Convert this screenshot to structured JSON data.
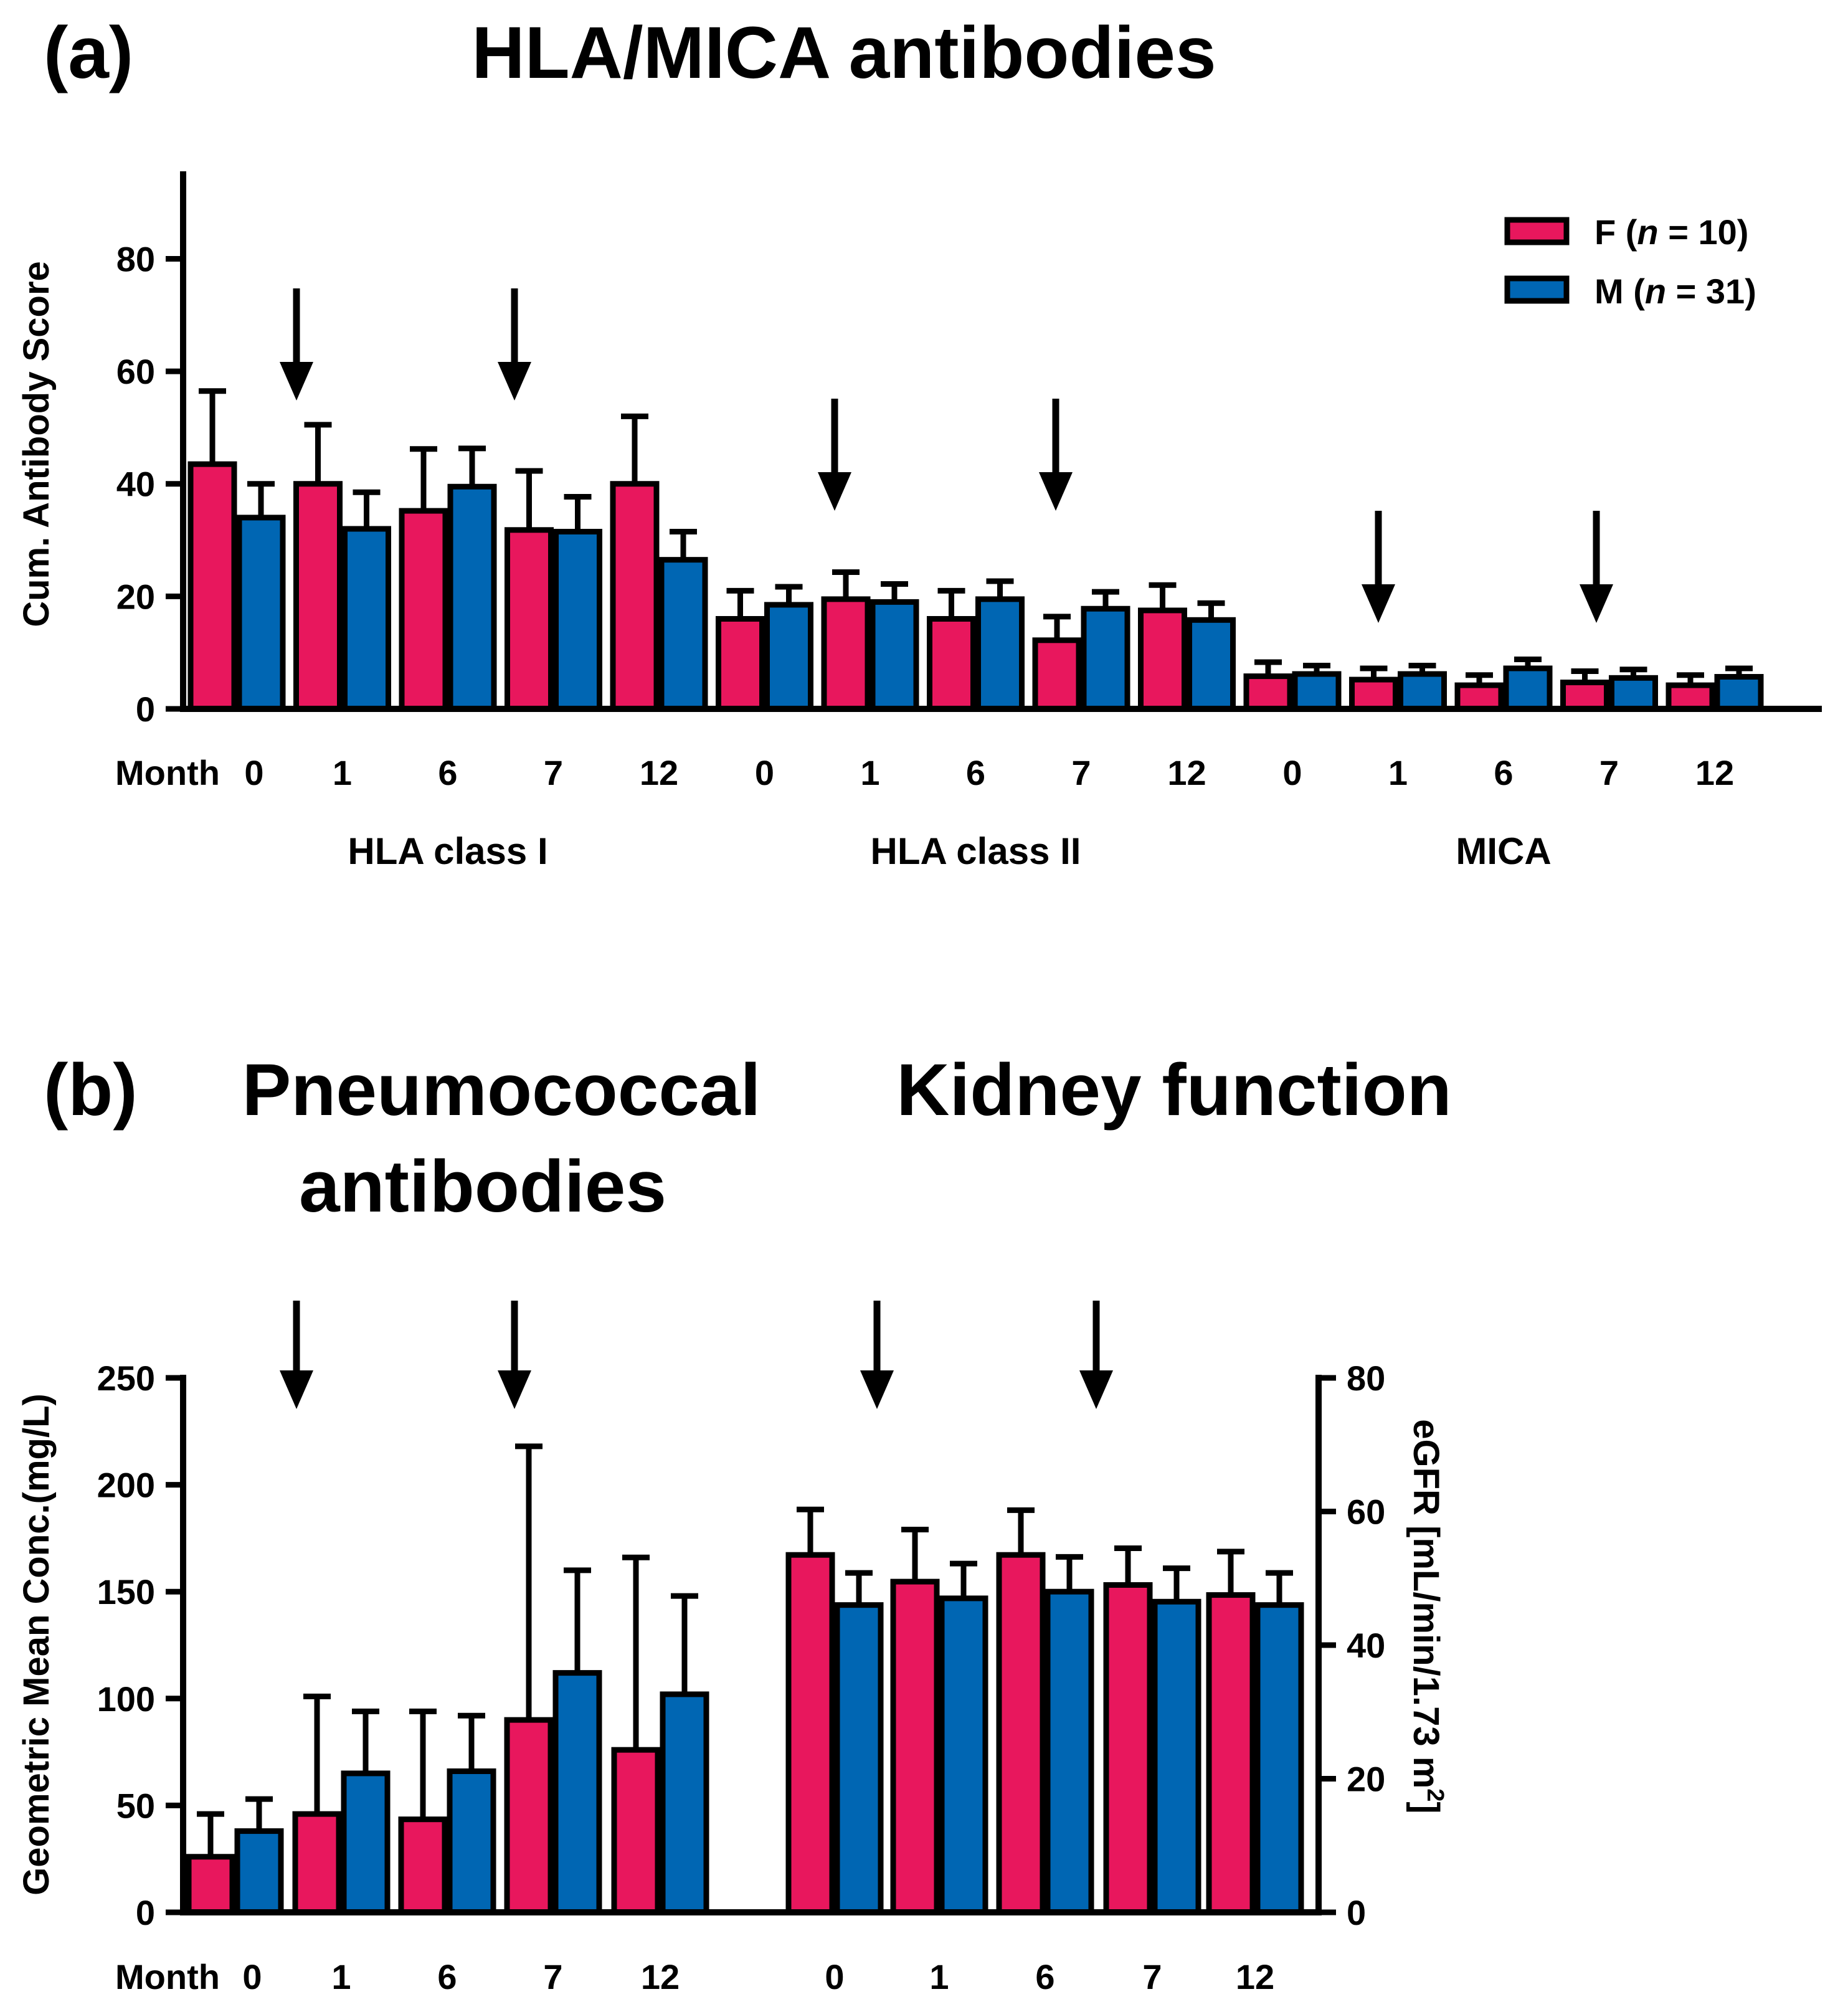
{
  "panel_a": {
    "letter": "(a)",
    "title": "HLA/MICA antibodies",
    "month_prefix": "Month",
    "legend": {
      "f_label": "F (",
      "f_n": "n",
      "f_count": " = 10)",
      "m_label": "M (",
      "m_n": "n",
      "m_count": " = 31)"
    }
  },
  "panel_b": {
    "letter": "(b)",
    "title_left_line1": "Pneumococcal",
    "title_left_line2": "antibodies",
    "title_right": "Kidney function",
    "month_prefix": "Month",
    "ylabel_right_main": "eGFR [mL/min/1.73 m",
    "ylabel_right_sup": "2",
    "ylabel_right_end": "]"
  },
  "colors": {
    "female": "#E8175D",
    "male": "#0066B3",
    "edge": "#000000"
  },
  "chart_data": [
    {
      "type": "bar",
      "title": "HLA/MICA antibodies",
      "ylabel": "Cum. Antibody Score",
      "ylim": [
        0,
        95
      ],
      "yticks": [
        0,
        20,
        40,
        60,
        80
      ],
      "legend_position": "top-right",
      "groups": [
        {
          "name": "HLA class I",
          "months": [
            "0",
            "1",
            "6",
            "7",
            "12"
          ],
          "series": [
            {
              "name": "F (n = 10)",
              "values": [
                43.5,
                40,
                35.2,
                31.8,
                40
              ],
              "errors": [
                13,
                10.5,
                11,
                10.5,
                12
              ]
            },
            {
              "name": "M (n = 31)",
              "values": [
                34,
                32,
                39.5,
                31.5,
                26.5
              ],
              "errors": [
                6,
                6.5,
                6.8,
                6.2,
                5
              ]
            }
          ]
        },
        {
          "name": "HLA class II",
          "months": [
            "0",
            "1",
            "6",
            "7",
            "12"
          ],
          "series": [
            {
              "name": "F (n = 10)",
              "values": [
                16,
                19.5,
                16,
                12.2,
                17.5
              ],
              "errors": [
                5,
                4.8,
                5,
                4.2,
                4.5
              ]
            },
            {
              "name": "M (n = 31)",
              "values": [
                18.5,
                19,
                19.5,
                17.8,
                15.8
              ],
              "errors": [
                3.2,
                3.2,
                3.2,
                3,
                3
              ]
            }
          ]
        },
        {
          "name": "MICA",
          "months": [
            "0",
            "1",
            "6",
            "7",
            "12"
          ],
          "series": [
            {
              "name": "F (n = 10)",
              "values": [
                5.8,
                5.2,
                4.2,
                4.7,
                4.2
              ],
              "errors": [
                2.5,
                2,
                1.8,
                2,
                1.8
              ]
            },
            {
              "name": "M (n = 31)",
              "values": [
                6.2,
                6.2,
                7.2,
                5.5,
                5.7
              ],
              "errors": [
                1.5,
                1.5,
                1.6,
                1.5,
                1.5
              ]
            }
          ]
        }
      ]
    },
    {
      "type": "bar",
      "title": "Pneumococcal antibodies",
      "ylabel": "Geometric Mean Conc.(mg/L)",
      "ylim": [
        0,
        250
      ],
      "yticks": [
        0,
        50,
        100,
        150,
        200,
        250
      ],
      "categories": [
        "0",
        "1",
        "6",
        "7",
        "12"
      ],
      "series": [
        {
          "name": "F (n = 10)",
          "values": [
            26,
            46,
            43.5,
            90,
            76
          ],
          "errors": [
            20,
            55,
            50.5,
            128,
            90
          ]
        },
        {
          "name": "M (n = 31)",
          "values": [
            38,
            65,
            66,
            112,
            102
          ],
          "errors": [
            15,
            29,
            26,
            48,
            46
          ]
        }
      ]
    },
    {
      "type": "bar",
      "title": "Kidney function",
      "ylabel": "eGFR [mL/min/1.73 m2]",
      "ylim": [
        0,
        80
      ],
      "yticks": [
        0,
        20,
        40,
        60,
        80
      ],
      "categories": [
        "0",
        "1",
        "6",
        "7",
        "12"
      ],
      "series": [
        {
          "name": "F (n = 10)",
          "values": [
            53.5,
            49.5,
            53.5,
            49,
            47.5
          ],
          "errors": [
            6.8,
            7.8,
            6.7,
            5.5,
            6.5
          ]
        },
        {
          "name": "M (n = 31)",
          "values": [
            46,
            47,
            48,
            46.5,
            46
          ],
          "errors": [
            4.8,
            5.2,
            5.2,
            5,
            4.8
          ]
        }
      ]
    }
  ]
}
